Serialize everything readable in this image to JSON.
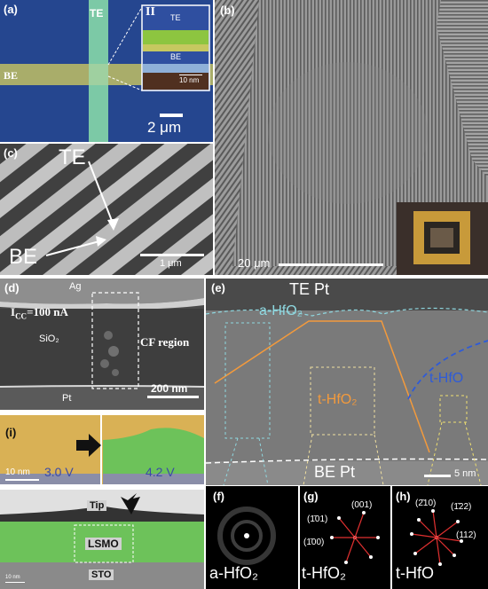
{
  "panels": {
    "a": {
      "label": "(a)",
      "te": "TE",
      "be": "BE",
      "scale": "2 μm",
      "inset": {
        "mark": "II",
        "te": "TE",
        "be": "BE",
        "scale": "10 nm"
      },
      "colors": {
        "substrate": "#25468f",
        "te_stripe": "#7cc9a6",
        "be_stripe": "#a9ad6a",
        "inset_green": "#8dc540"
      }
    },
    "b": {
      "label": "(b)",
      "scale": "20 μm"
    },
    "c": {
      "label": "(c)",
      "te": "TE",
      "be": "BE",
      "scale": "1 μm"
    },
    "d": {
      "label": "(d)",
      "ag": "Ag",
      "icc_main": "I",
      "icc_sub": "CC",
      "icc_rest": "=100 nA",
      "sio2": "SiO₂",
      "cf": "CF region",
      "scale": "200 nm",
      "pt": "Pt"
    },
    "e": {
      "label": "(e)",
      "te": "TE Pt",
      "a_hfo2": "a-HfO₂",
      "t_hfo2": "t-HfO₂",
      "t_hfo": "t-HfO",
      "be": "BE Pt",
      "scale": "5 nm",
      "colors": {
        "a_hfo2": "#8fd8e0",
        "t_hfo2": "#f39a3c",
        "t_hfo": "#2e5bd8",
        "boundary": "#f0e0a0"
      }
    },
    "i": {
      "label": "(i)",
      "v1": "3.0 V",
      "v2": "4.2 V",
      "scale": "10 nm",
      "tip": "Tip",
      "lsmo": "LSMO",
      "sto": "STO",
      "scale2": "10 nm",
      "colors": {
        "gold": "#d9b155",
        "green": "#6dc25a"
      }
    },
    "f": {
      "label": "(f)",
      "material": "a-HfO₂"
    },
    "g": {
      "label": "(g)",
      "material": "t-HfO₂",
      "idx1": "(1̄01)",
      "idx2": "(001)",
      "idx3": "(1̄00)"
    },
    "h": {
      "label": "(h)",
      "material": "t-HfO",
      "idx1": "(2̄10)",
      "idx2": "(1̄22)",
      "idx3": "(112)"
    }
  }
}
